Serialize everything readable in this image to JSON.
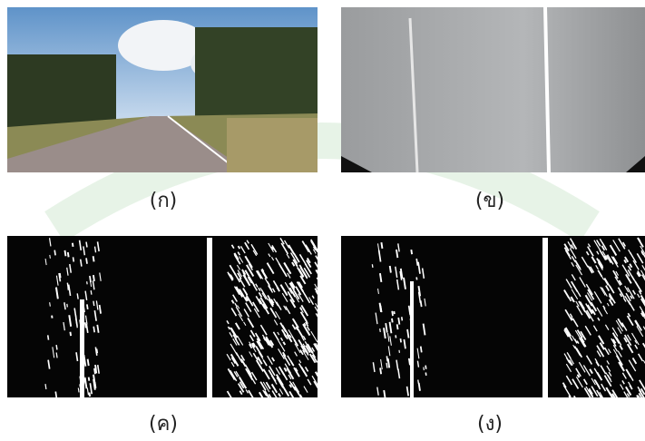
{
  "panels": [
    {
      "label": "(ก)"
    },
    {
      "label": "(ข)"
    },
    {
      "label": "(ค)"
    },
    {
      "label": "(ง)"
    }
  ]
}
